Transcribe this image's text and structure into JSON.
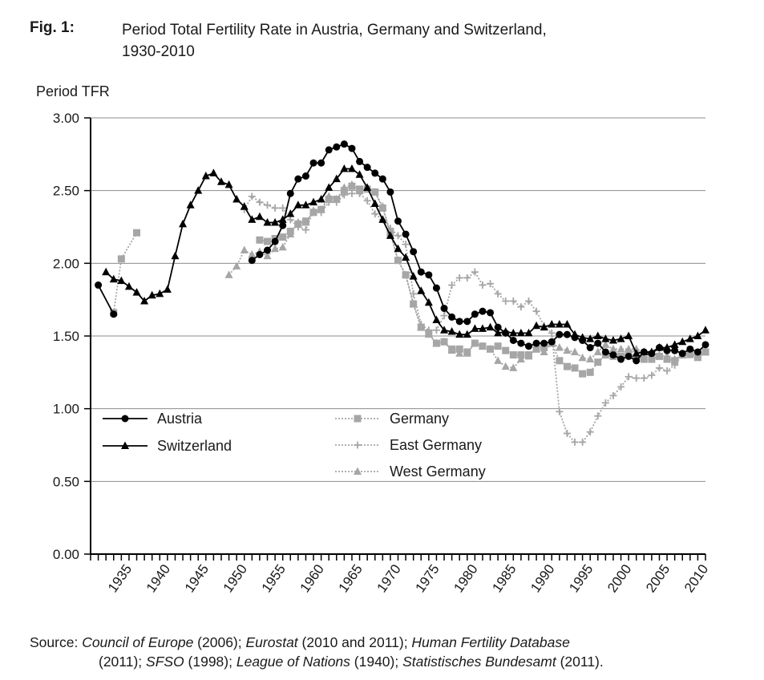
{
  "figure": {
    "label": "Fig. 1:",
    "title_line1": "Period Total Fertility Rate in Austria, Germany and Switzerland,",
    "title_line2": "1930-2010"
  },
  "source": {
    "prefix": "Source: ",
    "s1": "Council of Europe",
    "y1": " (2006); ",
    "s2": "Eurostat",
    "y2": " (2010 and 2011); ",
    "s3": "Human Fertility Database",
    "y3": "(2011); ",
    "s4": "SFSO",
    "y4": " (1998); ",
    "s5": "League of Nations",
    "y5": " (1940); ",
    "s6": "Statistisches Bundesamt",
    "y6": " (2011)."
  },
  "colors": {
    "black": "#000000",
    "gray": "#a6a6a6",
    "grid": "#8c8c8c"
  },
  "chart_data": {
    "type": "line",
    "title": "Period Total Fertility Rate in Austria, Germany and Switzerland, 1930-2010",
    "ylabel": "Period TFR",
    "xlabel": "",
    "xlim": [
      1930,
      2010
    ],
    "ylim": [
      0,
      3
    ],
    "yticks": [
      "0.00",
      "0.50",
      "1.00",
      "1.50",
      "2.00",
      "2.50",
      "3.00"
    ],
    "xticks": [
      "1935",
      "1940",
      "1945",
      "1950",
      "1955",
      "1960",
      "1965",
      "1970",
      "1975",
      "1980",
      "1985",
      "1990",
      "1995",
      "2000",
      "2005",
      "2010"
    ],
    "grid": "horizontal",
    "series": [
      {
        "name": "Austria",
        "color": "#000000",
        "marker": "circle",
        "style": "solid",
        "x": [
          1931,
          1933,
          1951,
          1952,
          1953,
          1954,
          1955,
          1956,
          1957,
          1958,
          1959,
          1960,
          1961,
          1962,
          1963,
          1964,
          1965,
          1966,
          1967,
          1968,
          1969,
          1970,
          1971,
          1972,
          1973,
          1974,
          1975,
          1976,
          1977,
          1978,
          1979,
          1980,
          1981,
          1982,
          1983,
          1984,
          1985,
          1986,
          1987,
          1988,
          1989,
          1990,
          1991,
          1992,
          1993,
          1994,
          1995,
          1996,
          1997,
          1998,
          1999,
          2000,
          2001,
          2002,
          2003,
          2004,
          2005,
          2006,
          2007,
          2008,
          2009,
          2010
        ],
        "values": [
          1.85,
          1.65,
          2.02,
          2.06,
          2.09,
          2.15,
          2.26,
          2.48,
          2.58,
          2.6,
          2.69,
          2.69,
          2.78,
          2.8,
          2.82,
          2.79,
          2.7,
          2.66,
          2.62,
          2.58,
          2.49,
          2.29,
          2.2,
          2.08,
          1.94,
          1.92,
          1.83,
          1.69,
          1.63,
          1.6,
          1.6,
          1.65,
          1.67,
          1.66,
          1.56,
          1.52,
          1.47,
          1.45,
          1.43,
          1.45,
          1.45,
          1.46,
          1.51,
          1.51,
          1.49,
          1.47,
          1.42,
          1.45,
          1.39,
          1.37,
          1.34,
          1.36,
          1.33,
          1.39,
          1.38,
          1.42,
          1.4,
          1.4,
          1.38,
          1.41,
          1.39,
          1.44
        ]
      },
      {
        "name": "Switzerland",
        "color": "#000000",
        "marker": "triangle",
        "style": "solid",
        "x": [
          1932,
          1933,
          1934,
          1935,
          1936,
          1937,
          1938,
          1939,
          1940,
          1941,
          1942,
          1943,
          1944,
          1945,
          1946,
          1947,
          1948,
          1949,
          1950,
          1951,
          1952,
          1953,
          1954,
          1955,
          1956,
          1957,
          1958,
          1959,
          1960,
          1961,
          1962,
          1963,
          1964,
          1965,
          1966,
          1967,
          1968,
          1969,
          1970,
          1971,
          1972,
          1973,
          1974,
          1975,
          1976,
          1977,
          1978,
          1979,
          1980,
          1981,
          1982,
          1983,
          1984,
          1985,
          1986,
          1987,
          1988,
          1989,
          1990,
          1991,
          1992,
          1993,
          1994,
          1995,
          1996,
          1997,
          1998,
          1999,
          2000,
          2001,
          2002,
          2003,
          2004,
          2005,
          2006,
          2007,
          2008,
          2009,
          2010
        ],
        "values": [
          1.94,
          1.89,
          1.88,
          1.84,
          1.8,
          1.74,
          1.78,
          1.79,
          1.82,
          2.05,
          2.27,
          2.4,
          2.5,
          2.6,
          2.62,
          2.56,
          2.54,
          2.44,
          2.39,
          2.3,
          2.32,
          2.28,
          2.28,
          2.3,
          2.34,
          2.4,
          2.4,
          2.42,
          2.44,
          2.52,
          2.58,
          2.65,
          2.65,
          2.61,
          2.52,
          2.41,
          2.3,
          2.19,
          2.1,
          2.04,
          1.91,
          1.81,
          1.73,
          1.61,
          1.54,
          1.53,
          1.51,
          1.51,
          1.55,
          1.55,
          1.56,
          1.52,
          1.53,
          1.52,
          1.52,
          1.52,
          1.57,
          1.56,
          1.58,
          1.58,
          1.58,
          1.51,
          1.49,
          1.48,
          1.5,
          1.48,
          1.47,
          1.48,
          1.5,
          1.38,
          1.39,
          1.39,
          1.42,
          1.42,
          1.44,
          1.46,
          1.48,
          1.5,
          1.54
        ]
      },
      {
        "name": "Germany",
        "color": "#a6a6a6",
        "marker": "square",
        "style": "dotted",
        "x": [
          1933,
          1934,
          1936,
          1952,
          1953,
          1954,
          1955,
          1956,
          1957,
          1958,
          1959,
          1960,
          1961,
          1962,
          1963,
          1964,
          1965,
          1966,
          1967,
          1968,
          1969,
          1970,
          1971,
          1972,
          1973,
          1974,
          1975,
          1976,
          1977,
          1978,
          1979,
          1980,
          1981,
          1982,
          1983,
          1984,
          1985,
          1986,
          1987,
          1988,
          1989,
          1990,
          1991,
          1992,
          1993,
          1994,
          1995,
          1996,
          1997,
          1998,
          1999,
          2000,
          2001,
          2002,
          2003,
          2004,
          2005,
          2006,
          2007,
          2008,
          2009,
          2010
        ],
        "values": [
          1.66,
          2.03,
          2.21,
          2.16,
          2.15,
          2.17,
          2.18,
          2.22,
          2.27,
          2.29,
          2.35,
          2.37,
          2.44,
          2.44,
          2.5,
          2.53,
          2.51,
          2.51,
          2.49,
          2.38,
          2.21,
          2.02,
          1.92,
          1.72,
          1.56,
          1.52,
          1.45,
          1.46,
          1.41,
          1.41,
          1.39,
          1.45,
          1.43,
          1.41,
          1.43,
          1.4,
          1.37,
          1.37,
          1.37,
          1.41,
          1.42,
          1.45,
          1.33,
          1.29,
          1.28,
          1.24,
          1.25,
          1.32,
          1.37,
          1.36,
          1.36,
          1.38,
          1.35,
          1.34,
          1.34,
          1.36,
          1.34,
          1.33,
          1.37,
          1.38,
          1.36,
          1.39
        ]
      },
      {
        "name": "East Germany",
        "color": "#a6a6a6",
        "marker": "plus",
        "style": "dotted",
        "x": [
          1950,
          1951,
          1952,
          1953,
          1954,
          1955,
          1956,
          1957,
          1958,
          1959,
          1960,
          1961,
          1962,
          1963,
          1964,
          1965,
          1966,
          1967,
          1968,
          1969,
          1970,
          1971,
          1972,
          1973,
          1974,
          1975,
          1976,
          1977,
          1978,
          1979,
          1980,
          1981,
          1982,
          1983,
          1984,
          1985,
          1986,
          1987,
          1988,
          1989,
          1990,
          1991,
          1992,
          1993,
          1994,
          1995,
          1996,
          1997,
          1998,
          1999,
          2000,
          2001,
          2002,
          2003,
          2004,
          2005,
          2006,
          2007,
          2008,
          2009,
          2010
        ],
        "values": [
          2.37,
          2.46,
          2.42,
          2.4,
          2.38,
          2.38,
          2.3,
          2.25,
          2.23,
          2.36,
          2.35,
          2.42,
          2.42,
          2.47,
          2.48,
          2.48,
          2.43,
          2.34,
          2.3,
          2.24,
          2.19,
          2.13,
          1.79,
          1.58,
          1.54,
          1.54,
          1.64,
          1.85,
          1.9,
          1.9,
          1.94,
          1.85,
          1.86,
          1.79,
          1.74,
          1.74,
          1.7,
          1.74,
          1.67,
          1.57,
          1.52,
          0.98,
          0.83,
          0.77,
          0.77,
          0.84,
          0.95,
          1.04,
          1.09,
          1.15,
          1.22,
          1.21,
          1.21,
          1.23,
          1.28,
          1.26,
          1.3,
          1.37,
          1.4,
          1.36,
          1.39
        ]
      },
      {
        "name": "West Germany",
        "color": "#a6a6a6",
        "marker": "triangle",
        "style": "dotted",
        "x": [
          1948,
          1949,
          1950,
          1951,
          1952,
          1953,
          1954,
          1955,
          1956,
          1957,
          1958,
          1959,
          1960,
          1961,
          1962,
          1963,
          1964,
          1965,
          1966,
          1967,
          1968,
          1969,
          1970,
          1971,
          1972,
          1973,
          1974,
          1975,
          1976,
          1977,
          1978,
          1979,
          1980,
          1981,
          1982,
          1983,
          1984,
          1985,
          1986,
          1987,
          1988,
          1989,
          1990,
          1991,
          1992,
          1993,
          1994,
          1995,
          1996,
          1997,
          1998,
          1999,
          2000,
          2001,
          2002,
          2003,
          2004,
          2005,
          2006,
          2007,
          2008,
          2009,
          2010
        ],
        "values": [
          1.92,
          1.98,
          2.09,
          2.06,
          2.08,
          2.05,
          2.1,
          2.11,
          2.2,
          2.28,
          2.28,
          2.36,
          2.37,
          2.46,
          2.44,
          2.52,
          2.54,
          2.5,
          2.51,
          2.49,
          2.39,
          2.21,
          2.02,
          1.92,
          1.72,
          1.56,
          1.51,
          1.45,
          1.46,
          1.4,
          1.38,
          1.38,
          1.45,
          1.43,
          1.41,
          1.33,
          1.29,
          1.28,
          1.34,
          1.36,
          1.41,
          1.39,
          1.45,
          1.42,
          1.4,
          1.39,
          1.35,
          1.34,
          1.39,
          1.44,
          1.41,
          1.41,
          1.41,
          1.41,
          1.39,
          1.36,
          1.37,
          1.36,
          1.34,
          1.37,
          1.37,
          1.35,
          1.39
        ]
      }
    ]
  }
}
